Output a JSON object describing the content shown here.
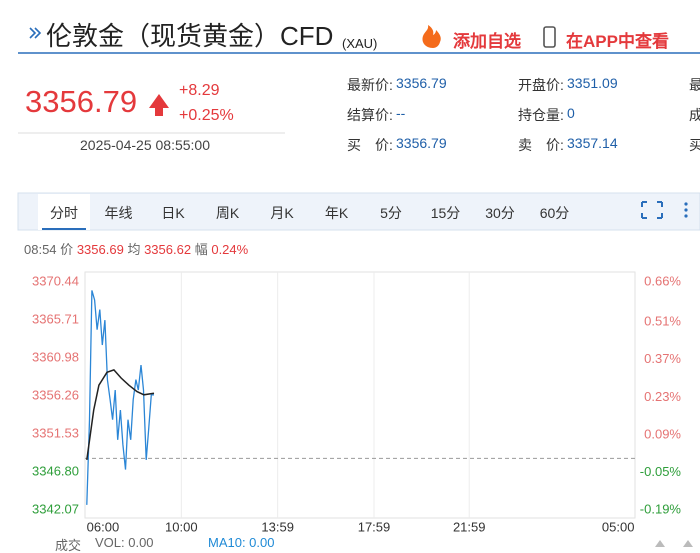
{
  "header": {
    "title": "伦敦金（现货黄金）CFD",
    "code": "(XAU)",
    "actions": [
      "添加自选",
      "在APP中查看"
    ]
  },
  "quote": {
    "price": "3356.79",
    "change": "+8.29",
    "change_pct": "+0.25%",
    "time": "2025-04-25 08:55:00",
    "rows": [
      [
        {
          "label": "最新价:",
          "value": "3356.79"
        },
        {
          "label": "开盘价:",
          "value": "3351.09"
        },
        {
          "label": "最"
        }
      ],
      [
        {
          "label": "结算价:",
          "value": "--"
        },
        {
          "label": "持仓量:",
          "value": "0"
        },
        {
          "label": "成"
        }
      ],
      [
        {
          "label": "买　价:",
          "value": "3356.79"
        },
        {
          "label": "卖　价:",
          "value": "3357.14"
        },
        {
          "label": "买"
        }
      ]
    ]
  },
  "tabs": [
    "分时",
    "年线",
    "日K",
    "周K",
    "月K",
    "年K",
    "5分",
    "15分",
    "30分",
    "60分"
  ],
  "info_line": {
    "time": "08:54",
    "price_label": "价",
    "price": "3356.69",
    "avg_label": "均",
    "avg": "3356.62",
    "amp_label": "幅",
    "amp": "0.24%"
  },
  "chart": {
    "type": "line",
    "reference_line": 3348.5,
    "ylim": [
      3342.07,
      3370.44
    ],
    "yticks": [
      3370.44,
      3365.71,
      3360.98,
      3356.26,
      3351.53,
      {
        "value": 3346.8,
        "label": "3346.80"
      },
      3342.07
    ],
    "y2lim": [
      -0.19,
      0.66
    ],
    "y2ticks": [
      {
        "value": 0.66,
        "label": "0.66%"
      },
      {
        "value": 0.51,
        "label": "0.51%"
      },
      {
        "value": 0.37,
        "label": "0.37%"
      },
      {
        "value": 0.23,
        "label": "0.23%"
      },
      {
        "value": 0.09,
        "label": "0.09%"
      },
      {
        "value": -0.05,
        "label": "-0.05%"
      },
      {
        "value": -0.19,
        "label": "-0.19%"
      }
    ],
    "xlim": [
      5.2,
      29.75
    ],
    "xticks": [
      {
        "value": 6,
        "label": "06:00"
      },
      {
        "value": 9.5,
        "label": "10:00"
      },
      {
        "value": 13.8,
        "label": "13:59"
      },
      {
        "value": 18.1,
        "label": "17:59"
      },
      {
        "value": 22.35,
        "label": "21:59"
      },
      {
        "value": 29,
        "label": "05:00"
      }
    ],
    "series": [
      {
        "color": "#2b86d6",
        "x": [
          5.28,
          5.4,
          5.51,
          5.63,
          5.74,
          5.86,
          5.97,
          6.09,
          6.2,
          6.32,
          6.43,
          6.55,
          6.66,
          6.78,
          6.89,
          7.01,
          7.12,
          7.24,
          7.35,
          7.47,
          7.58,
          7.7,
          7.81,
          7.93,
          8.04,
          8.16,
          8.28
        ],
        "values": [
          3342.7,
          3353.3,
          3369.4,
          3368.2,
          3364.5,
          3367.0,
          3362.6,
          3365.7,
          3358.3,
          3355.8,
          3353.3,
          3357.0,
          3350.8,
          3354.5,
          3350.2,
          3347.1,
          3353.3,
          3350.8,
          3355.8,
          3358.3,
          3357.0,
          3360.1,
          3357.0,
          3348.3,
          3352.0,
          3356.4,
          3356.4
        ]
      },
      {
        "color": "#222222",
        "x": [
          5.28,
          5.59,
          5.82,
          6.18,
          6.49,
          6.81,
          7.16,
          7.52,
          7.83,
          8.28
        ],
        "values": [
          3348.3,
          3354.5,
          3357.6,
          3359.2,
          3359.5,
          3358.5,
          3357.6,
          3356.8,
          3356.4,
          3356.6
        ]
      }
    ]
  },
  "footer": {
    "label": "成交",
    "vol": "VOL: 0.00",
    "ma": "MA10: 0.00"
  }
}
